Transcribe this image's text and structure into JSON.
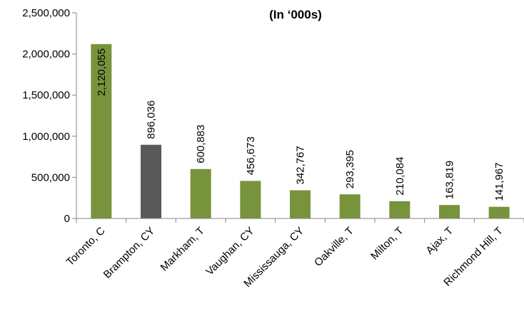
{
  "chart_data": {
    "type": "bar",
    "title": "(In ‘000s)",
    "xlabel": "",
    "ylabel": "",
    "categories": [
      "Toronto, C",
      "Brampton, CY",
      "Markham, T",
      "Vaughan, CY",
      "Mississauga, CY",
      "Oakville, T",
      "Milton, T",
      "Ajax, T",
      "Richmond Hill, T"
    ],
    "values": [
      2120055,
      896036,
      600883,
      456673,
      342767,
      293395,
      210084,
      163819,
      141967
    ],
    "data_labels": [
      "2,120,055",
      "896,036",
      "600,883",
      "456,673",
      "342,767",
      "293,395",
      "210,084",
      "163,819",
      "141,967"
    ],
    "yticks": [
      0,
      500000,
      1000000,
      1500000,
      2000000,
      2500000
    ],
    "ytick_labels": [
      "0",
      "500,000",
      "1,000,000",
      "1,500,000",
      "2,000,000",
      "2,500,000"
    ],
    "ylim": [
      0,
      2500000
    ],
    "grid": false,
    "legend": "none",
    "colors": {
      "default_bar": "#77933C",
      "highlight_bar": "#595959",
      "axis": "#868686"
    },
    "highlight_index": 1
  }
}
